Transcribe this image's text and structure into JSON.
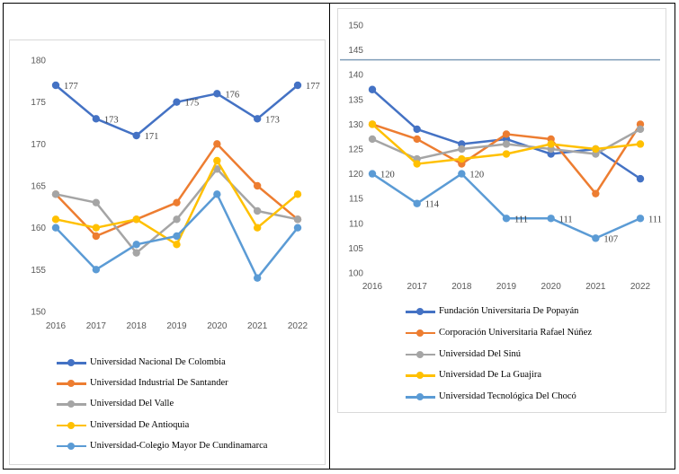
{
  "chart_data": [
    {
      "type": "line",
      "title": "",
      "xlabel": "",
      "ylabel": "",
      "categories": [
        "2016",
        "2017",
        "2018",
        "2019",
        "2020",
        "2021",
        "2022"
      ],
      "ylim": [
        150,
        180
      ],
      "yticks": [
        150,
        155,
        160,
        165,
        170,
        175,
        180
      ],
      "grid": false,
      "legend": "bottom",
      "series": [
        {
          "name": "Universidad Nacional De Colombia",
          "color": "#4472c4",
          "values": [
            177,
            173,
            171,
            175,
            176,
            173,
            177
          ],
          "labels": [
            "177",
            "173",
            "171",
            "175",
            "176",
            "173",
            "177"
          ]
        },
        {
          "name": "Universidad Industrial De Santander",
          "color": "#ed7d31",
          "values": [
            164,
            159,
            161,
            163,
            170,
            165,
            161
          ]
        },
        {
          "name": "Universidad Del Valle",
          "color": "#a5a5a5",
          "values": [
            164,
            163,
            157,
            161,
            167,
            162,
            161
          ]
        },
        {
          "name": "Universidad De Antioquia",
          "color": "#ffc000",
          "values": [
            161,
            160,
            161,
            158,
            168,
            160,
            164
          ]
        },
        {
          "name": "Universidad-Colegio Mayor De Cundinamarca",
          "color": "#5b9bd5",
          "values": [
            160,
            155,
            158,
            159,
            164,
            154,
            160
          ]
        }
      ]
    },
    {
      "type": "line",
      "title": "",
      "xlabel": "",
      "ylabel": "",
      "categories": [
        "2016",
        "2017",
        "2018",
        "2019",
        "2020",
        "2021",
        "2022"
      ],
      "ylim": [
        100,
        150
      ],
      "yticks": [
        100,
        105,
        110,
        115,
        120,
        125,
        130,
        135,
        140,
        145,
        150
      ],
      "reference_line": 143,
      "grid": false,
      "legend": "bottom",
      "series": [
        {
          "name": "Fundación Universitaria De Popayán",
          "color": "#4472c4",
          "values": [
            137,
            129,
            126,
            127,
            124,
            125,
            119
          ]
        },
        {
          "name": "Corporación Universitaria Rafael Núñez",
          "color": "#ed7d31",
          "values": [
            130,
            127,
            122,
            128,
            127,
            116,
            130
          ]
        },
        {
          "name": "Universidad Del Sinú",
          "color": "#a5a5a5",
          "values": [
            127,
            123,
            125,
            126,
            125,
            124,
            129
          ]
        },
        {
          "name": "Universidad De La Guajira",
          "color": "#ffc000",
          "values": [
            130,
            122,
            123,
            124,
            126,
            125,
            126
          ]
        },
        {
          "name": "Universidad Tecnológica Del Chocó",
          "color": "#5b9bd5",
          "values": [
            120,
            114,
            120,
            111,
            111,
            107,
            111
          ],
          "labels": [
            "120",
            "114",
            "120",
            "111",
            "111",
            "107",
            "111"
          ]
        }
      ]
    }
  ]
}
